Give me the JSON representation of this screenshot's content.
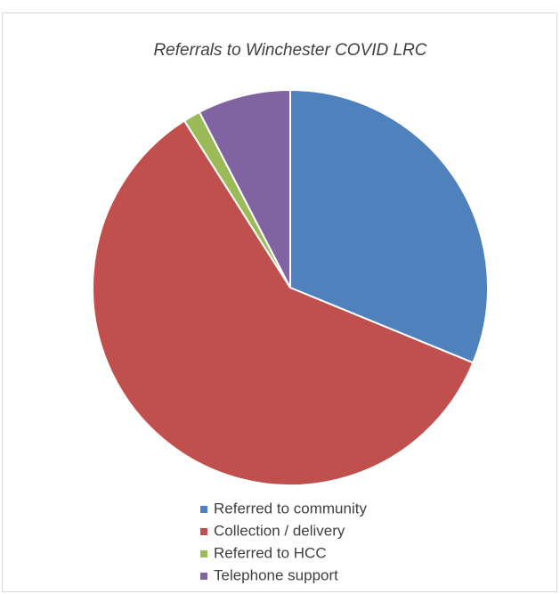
{
  "chart_data": {
    "type": "pie",
    "title": "Referrals to Winchester COVID LRC",
    "categories": [
      "Referred to community",
      "Collection / delivery",
      "Referred to HCC",
      "Telephone support"
    ],
    "values": [
      31.2,
      59.8,
      1.4,
      7.6
    ],
    "colors": [
      "#4f81bd",
      "#c0504d",
      "#9bbb59",
      "#8064a2"
    ],
    "legend": "bottom"
  }
}
